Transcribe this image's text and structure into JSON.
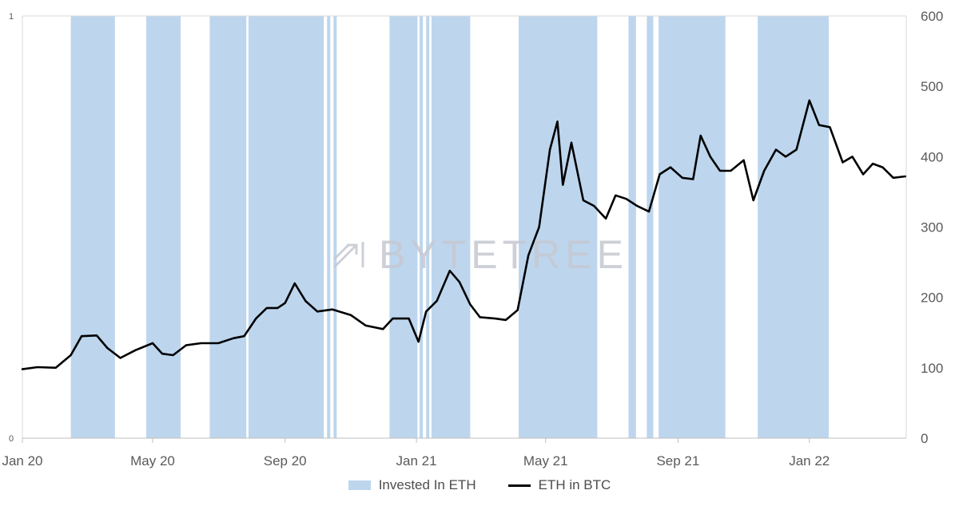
{
  "chart_data": {
    "type": "line",
    "watermark": "BYTETREE",
    "x_ticks": [
      "Jan 20",
      "May 20",
      "Sep 20",
      "Jan 21",
      "May 21",
      "Sep 21",
      "Jan 22"
    ],
    "y_left_ticks": [
      "0",
      "1"
    ],
    "y_left_range": [
      0,
      1
    ],
    "y_right_ticks": [
      "0",
      "100",
      "200",
      "300",
      "400",
      "500",
      "600"
    ],
    "y_right_range": [
      0,
      600
    ],
    "x_range": [
      "2020-01-01",
      "2022-04-01"
    ],
    "legend": [
      "Invested In ETH",
      "ETH in BTC"
    ],
    "legend_position": "bottom",
    "colors": {
      "band": "#bdd6ee",
      "line": "#000000"
    },
    "invested_periods": [
      [
        "2020-02-15",
        "2020-03-27"
      ],
      [
        "2020-04-25",
        "2020-05-27"
      ],
      [
        "2020-06-23",
        "2020-07-27"
      ],
      [
        "2020-07-29",
        "2020-10-07"
      ],
      [
        "2020-10-10",
        "2020-10-13"
      ],
      [
        "2020-10-16",
        "2020-10-19"
      ],
      [
        "2020-12-07",
        "2021-01-02"
      ],
      [
        "2021-01-04",
        "2021-01-07"
      ],
      [
        "2021-01-10",
        "2021-01-13"
      ],
      [
        "2021-01-15",
        "2021-02-20"
      ],
      [
        "2021-04-06",
        "2021-06-18"
      ],
      [
        "2021-07-17",
        "2021-07-24"
      ],
      [
        "2021-08-03",
        "2021-08-09"
      ],
      [
        "2021-08-14",
        "2021-10-15"
      ],
      [
        "2021-11-14",
        "2022-01-19"
      ]
    ],
    "series": [
      {
        "name": "ETH in BTC",
        "axis": "right",
        "x": [
          "2020-01-01",
          "2020-01-15",
          "2020-02-01",
          "2020-02-15",
          "2020-02-25",
          "2020-03-10",
          "2020-03-20",
          "2020-04-01",
          "2020-04-15",
          "2020-05-01",
          "2020-05-10",
          "2020-05-20",
          "2020-06-01",
          "2020-06-15",
          "2020-07-01",
          "2020-07-15",
          "2020-07-25",
          "2020-08-05",
          "2020-08-15",
          "2020-08-25",
          "2020-09-01",
          "2020-09-10",
          "2020-09-20",
          "2020-10-01",
          "2020-10-15",
          "2020-11-01",
          "2020-11-15",
          "2020-12-01",
          "2020-12-10",
          "2020-12-25",
          "2021-01-03",
          "2021-01-10",
          "2021-01-20",
          "2021-02-01",
          "2021-02-10",
          "2021-02-20",
          "2021-03-01",
          "2021-03-15",
          "2021-03-25",
          "2021-04-05",
          "2021-04-15",
          "2021-04-25",
          "2021-05-05",
          "2021-05-12",
          "2021-05-17",
          "2021-05-25",
          "2021-06-05",
          "2021-06-15",
          "2021-06-26",
          "2021-07-05",
          "2021-07-15",
          "2021-07-25",
          "2021-08-05",
          "2021-08-15",
          "2021-08-25",
          "2021-09-05",
          "2021-09-15",
          "2021-09-22",
          "2021-10-01",
          "2021-10-10",
          "2021-10-20",
          "2021-11-01",
          "2021-11-10",
          "2021-11-20",
          "2021-12-01",
          "2021-12-10",
          "2021-12-20",
          "2022-01-01",
          "2022-01-10",
          "2022-01-20",
          "2022-02-01",
          "2022-02-10",
          "2022-02-20",
          "2022-03-01",
          "2022-03-10",
          "2022-03-20",
          "2022-03-31"
        ],
        "y": [
          98,
          101,
          100,
          118,
          145,
          146,
          128,
          114,
          125,
          135,
          120,
          118,
          132,
          135,
          135,
          142,
          145,
          170,
          185,
          185,
          192,
          220,
          195,
          180,
          183,
          175,
          160,
          155,
          170,
          170,
          137,
          180,
          195,
          238,
          222,
          190,
          172,
          170,
          168,
          182,
          260,
          300,
          410,
          450,
          360,
          420,
          338,
          330,
          312,
          345,
          340,
          330,
          322,
          375,
          385,
          370,
          368,
          430,
          400,
          380,
          380,
          395,
          338,
          380,
          410,
          400,
          410,
          480,
          445,
          442,
          392,
          400,
          375,
          390,
          385,
          370,
          372
        ]
      }
    ]
  }
}
